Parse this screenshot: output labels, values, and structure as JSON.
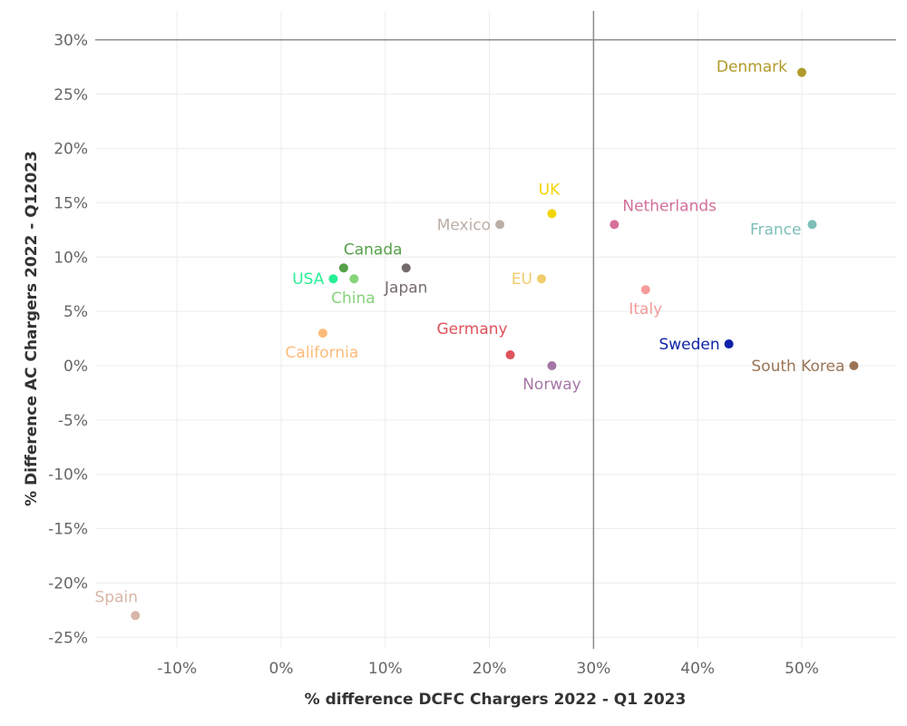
{
  "chart_data": {
    "type": "scatter",
    "title": "",
    "xlabel": "% difference DCFC Chargers 2022 - Q1 2023",
    "ylabel": "% Difference AC Chargers 2022 - Q12023",
    "xlim": [
      -18,
      59
    ],
    "ylim": [
      -26,
      32.5
    ],
    "x_ticks": [
      -10,
      0,
      10,
      20,
      30,
      40,
      50
    ],
    "x_tick_labels": [
      "-10%",
      "0%",
      "10%",
      "20%",
      "30%",
      "40%",
      "50%"
    ],
    "y_ticks": [
      -25,
      -20,
      -15,
      -10,
      -5,
      0,
      5,
      10,
      15,
      20,
      25,
      30
    ],
    "y_tick_labels": [
      "-25%",
      "-20%",
      "-15%",
      "-10%",
      "-5%",
      "0%",
      "5%",
      "10%",
      "15%",
      "20%",
      "25%",
      "30%"
    ],
    "reference_lines": {
      "x": 30,
      "y": 30
    },
    "grid": true,
    "points": [
      {
        "label": "Denmark",
        "x": 50,
        "y": 27,
        "color": "#b09a2a",
        "label_pos": "left-above"
      },
      {
        "label": "UK",
        "x": 26,
        "y": 14,
        "color": "#f2d400",
        "label_pos": "above-left"
      },
      {
        "label": "Netherlands",
        "x": 32,
        "y": 13,
        "color": "#d4709a",
        "label_pos": "above-right"
      },
      {
        "label": "Mexico",
        "x": 21,
        "y": 13,
        "color": "#bbb0a8",
        "label_pos": "left"
      },
      {
        "label": "France",
        "x": 51,
        "y": 13,
        "color": "#7fbfb8",
        "label_pos": "left-below"
      },
      {
        "label": "Canada",
        "x": 6,
        "y": 9,
        "color": "#56a04a",
        "label_pos": "above-right"
      },
      {
        "label": "Japan",
        "x": 12,
        "y": 9,
        "color": "#756b6b",
        "label_pos": "below"
      },
      {
        "label": "USA",
        "x": 5,
        "y": 8,
        "color": "#27ef95",
        "label_pos": "left"
      },
      {
        "label": "China",
        "x": 7,
        "y": 8,
        "color": "#86d37a",
        "label_pos": "below"
      },
      {
        "label": "EU",
        "x": 25,
        "y": 8,
        "color": "#f0cd6a",
        "label_pos": "left"
      },
      {
        "label": "Italy",
        "x": 35,
        "y": 7,
        "color": "#f59b99",
        "label_pos": "below"
      },
      {
        "label": "California",
        "x": 4,
        "y": 3,
        "color": "#fdbb79",
        "label_pos": "below"
      },
      {
        "label": "Sweden",
        "x": 43,
        "y": 2,
        "color": "#0f23a9",
        "label_pos": "left"
      },
      {
        "label": "Germany",
        "x": 22,
        "y": 1,
        "color": "#df535b",
        "label_pos": "above-left"
      },
      {
        "label": "Norway",
        "x": 26,
        "y": 0,
        "color": "#a576a6",
        "label_pos": "below"
      },
      {
        "label": "South Korea",
        "x": 55,
        "y": 0,
        "color": "#9a7456",
        "label_pos": "left"
      },
      {
        "label": "Spain",
        "x": -14,
        "y": -23,
        "color": "#d8b6a8",
        "label_pos": "above-left"
      }
    ]
  }
}
